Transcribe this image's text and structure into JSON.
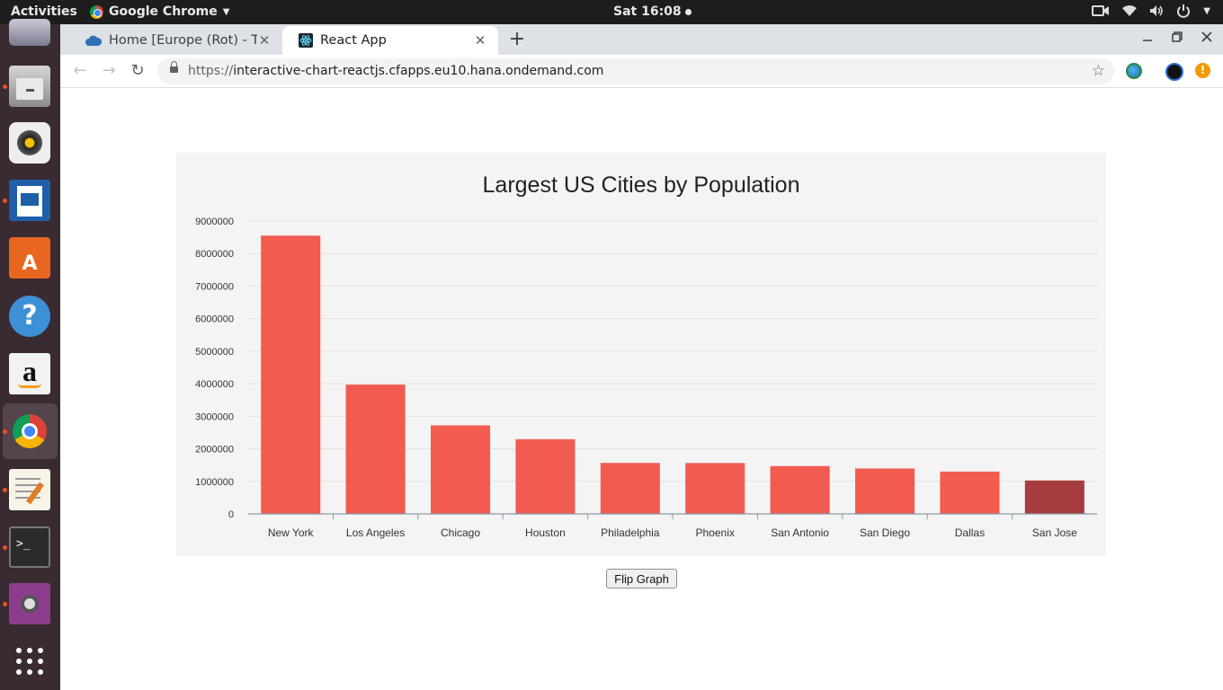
{
  "topbar": {
    "activities": "Activities",
    "app_name": "Google Chrome",
    "clock": "Sat 16:08"
  },
  "dock": {
    "items": [
      "mail",
      "files",
      "sound",
      "writer",
      "software",
      "help",
      "amazon",
      "chrome",
      "text-editor",
      "terminal",
      "screenshot",
      "app-grid"
    ]
  },
  "browser": {
    "tabs": [
      {
        "title": "Home [Europe (Rot) - Trial",
        "icon": "cloud-icon"
      },
      {
        "title": "React App",
        "icon": "react-icon"
      }
    ],
    "url_scheme": "https://",
    "url_host": "interactive-chart-reactjs.cfapps.eu10.hana.ondemand.com"
  },
  "colors": {
    "bar": "#f25b50",
    "bar_highlight": "#a73c3e",
    "card_bg": "#f4f4f4"
  },
  "chart_data": {
    "type": "bar",
    "title": "Largest US Cities by Population",
    "categories": [
      "New York",
      "Los Angeles",
      "Chicago",
      "Houston",
      "Philadelphia",
      "Phoenix",
      "San Antonio",
      "San Diego",
      "Dallas",
      "San Jose"
    ],
    "values": [
      8550405,
      3971883,
      2720546,
      2296224,
      1567442,
      1563025,
      1469845,
      1394928,
      1300092,
      1026908
    ],
    "highlighted_category": "San Jose",
    "ylim": [
      0,
      9000000
    ],
    "yticks": [
      "0",
      "1000000",
      "2000000",
      "3000000",
      "4000000",
      "5000000",
      "6000000",
      "7000000",
      "8000000",
      "9000000"
    ],
    "grid": true
  },
  "button": {
    "flip_label": "Flip Graph"
  }
}
